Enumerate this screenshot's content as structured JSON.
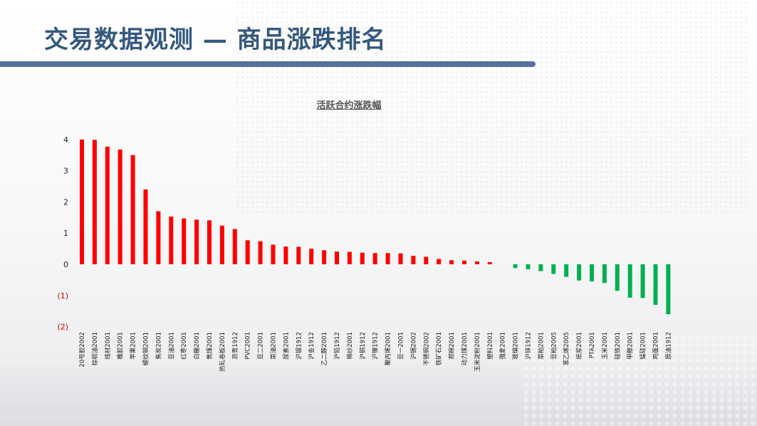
{
  "page": {
    "title": "交易数据观测 — 商品涨跌排名"
  },
  "colors": {
    "up": "#ff0000",
    "down": "#00b050",
    "title": "#35587e",
    "title_bar": "#55739a"
  },
  "chart_data": {
    "type": "bar",
    "title": "活跃合约涨跌幅",
    "xlabel": "",
    "ylabel": "",
    "ylim": [
      -2,
      4
    ],
    "yticks": [
      {
        "value": 4,
        "label": "4"
      },
      {
        "value": 3,
        "label": "3"
      },
      {
        "value": 2,
        "label": "2"
      },
      {
        "value": 1,
        "label": "1"
      },
      {
        "value": 0,
        "label": "0"
      },
      {
        "value": -1,
        "label": "(1)"
      },
      {
        "value": -2,
        "label": "(2)"
      }
    ],
    "grid": false,
    "legend": "none",
    "categories": [
      "20号胶2002",
      "棕榈油2001",
      "线材2001",
      "橡胶2001",
      "苹果2001",
      "螺纹钢2001",
      "焦炭2001",
      "豆油2001",
      "红枣2001",
      "白糖2001",
      "焦煤2001",
      "热轧卷板2001",
      "沥青1912",
      "PVC2001",
      "豆二2001",
      "菜油2001",
      "尿素2001",
      "沪银1912",
      "沪金1912",
      "乙二醇2001",
      "沪铅1912",
      "棉纱2001",
      "沪铜1912",
      "沪镍1912",
      "聚丙烯2001",
      "豆一2001",
      "沪锡2002",
      "不锈钢2002",
      "铁矿石2001",
      "郑棉2001",
      "动力煤2001",
      "玉米淀粉2001",
      "塑料2001",
      "强麦2001",
      "玻璃2001",
      "沪锌1912",
      "菜粕2001",
      "豆粕2005",
      "苯乙烯2005",
      "纸浆2001",
      "PTA2001",
      "玉米2001",
      "硅铁2001",
      "甲醇2001",
      "锰硅2001",
      "鸡蛋2001",
      "原油1912"
    ],
    "values": [
      4.0,
      3.99,
      3.77,
      3.68,
      3.5,
      2.4,
      1.7,
      1.53,
      1.47,
      1.43,
      1.41,
      1.24,
      1.13,
      0.77,
      0.74,
      0.63,
      0.57,
      0.56,
      0.5,
      0.45,
      0.41,
      0.4,
      0.37,
      0.36,
      0.36,
      0.35,
      0.27,
      0.24,
      0.17,
      0.13,
      0.12,
      0.09,
      0.07,
      0.0,
      -0.12,
      -0.16,
      -0.22,
      -0.31,
      -0.4,
      -0.52,
      -0.55,
      -0.6,
      -0.85,
      -1.07,
      -1.08,
      -1.3,
      -1.6
    ]
  }
}
